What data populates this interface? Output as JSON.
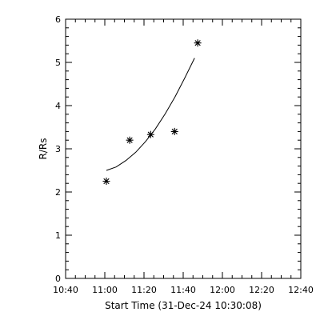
{
  "chart_data": {
    "type": "scatter",
    "title": "",
    "xlabel": "Start Time (31-Dec-24 10:30:08)",
    "ylabel": "R/Rs",
    "x_unit": "minutes",
    "xlim": [
      10.0,
      130.0
    ],
    "ylim": [
      0,
      6
    ],
    "x_ticks": [
      {
        "value": 10,
        "label": "10:40"
      },
      {
        "value": 30,
        "label": "11:00"
      },
      {
        "value": 50,
        "label": "11:20"
      },
      {
        "value": 70,
        "label": "11:40"
      },
      {
        "value": 90,
        "label": "12:00"
      },
      {
        "value": 110,
        "label": "12:20"
      },
      {
        "value": 130,
        "label": "12:40"
      }
    ],
    "y_ticks": [
      0,
      1,
      2,
      3,
      4,
      5,
      6
    ],
    "grid": false,
    "series": [
      {
        "kind": "points",
        "marker": "asterisk",
        "x": [
          30.8,
          42.7,
          53.4,
          65.6,
          77.4
        ],
        "y": [
          2.25,
          3.2,
          3.33,
          3.4,
          5.45
        ]
      },
      {
        "kind": "line",
        "x": [
          30.8,
          35.8,
          40.8,
          45.8,
          50.8,
          55.8,
          60.8,
          65.8,
          70.8,
          75.8
        ],
        "y": [
          2.5,
          2.58,
          2.73,
          2.92,
          3.17,
          3.46,
          3.81,
          4.2,
          4.64,
          5.1
        ]
      }
    ]
  }
}
